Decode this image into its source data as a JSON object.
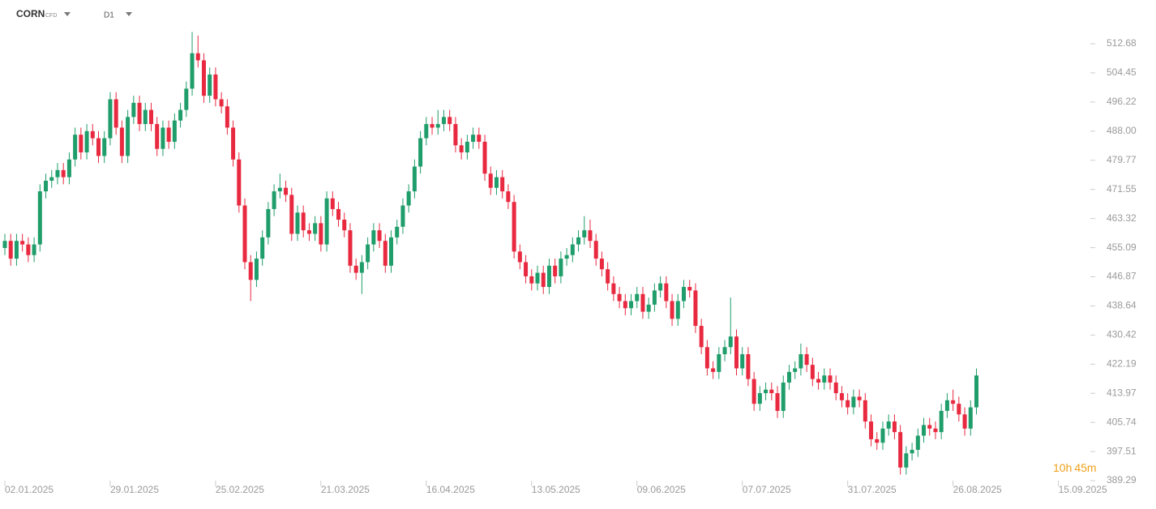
{
  "header": {
    "symbol": "CORN",
    "instrument": "CFD",
    "timeframe": "D1"
  },
  "countdown": {
    "hours": "10h",
    "minutes": "45m"
  },
  "chart_data": {
    "type": "candlestick",
    "up_color": "#1f9d6a",
    "down_color": "#e8293f",
    "ylim": [
      382.43,
      525.04
    ],
    "yticks": [
      512.68,
      504.45,
      496.22,
      {
        "value": 488.0,
        "label": "488.00"
      },
      479.77,
      471.55,
      463.32,
      455.09,
      446.87,
      438.64,
      430.42,
      422.19,
      413.97,
      405.74,
      397.51,
      389.29
    ],
    "xlim": [
      -0.83,
      185.46
    ],
    "xticks": [
      {
        "value": 0,
        "label": "02.01.2025"
      },
      {
        "value": 18,
        "label": "29.01.2025"
      },
      {
        "value": 36,
        "label": "25.02.2025"
      },
      {
        "value": 54,
        "label": "21.03.2025"
      },
      {
        "value": 72,
        "label": "16.04.2025"
      },
      {
        "value": 90,
        "label": "13.05.2025"
      },
      {
        "value": 108,
        "label": "09.06.2025"
      },
      {
        "value": 126,
        "label": "07.07.2025"
      },
      {
        "value": 144,
        "label": "31.07.2025"
      },
      {
        "value": 162,
        "label": "26.08.2025"
      },
      {
        "value": 180,
        "label": "15.09.2025"
      }
    ],
    "open": [
      455,
      457,
      452,
      457,
      456,
      453,
      456,
      471,
      474,
      475,
      477,
      475,
      480,
      487,
      482,
      488,
      486,
      481,
      486,
      497,
      489,
      481,
      492,
      496,
      490,
      494,
      490,
      483,
      489,
      485,
      491,
      494,
      500,
      510,
      508,
      498,
      504,
      497,
      495,
      489,
      480,
      467,
      451,
      446,
      452,
      458,
      466,
      471,
      472,
      470,
      459,
      465,
      460,
      459,
      462,
      456,
      469,
      466,
      463,
      460,
      450,
      448,
      451,
      456,
      460,
      457,
      450,
      458,
      461,
      467,
      471,
      478,
      486,
      490,
      489,
      490,
      492,
      490,
      484,
      482,
      485,
      487,
      485,
      476,
      472,
      475,
      471,
      468,
      454,
      451,
      447,
      445,
      448,
      444,
      450,
      447,
      452,
      453,
      456,
      458,
      460,
      457,
      452,
      449,
      445,
      442,
      440,
      438,
      440,
      442,
      437,
      439,
      443,
      445,
      440,
      435,
      440,
      444,
      443,
      433,
      427,
      421,
      420,
      425,
      427,
      430,
      421,
      425,
      418,
      411,
      414,
      415,
      414,
      409,
      417,
      420,
      421,
      425,
      422,
      418,
      417,
      419,
      417,
      414,
      412,
      410,
      413,
      412,
      406,
      401,
      400,
      404,
      406,
      403,
      393,
      397,
      398,
      402,
      405,
      404,
      403,
      409,
      412,
      411,
      408,
      404,
      410
    ],
    "high": [
      459,
      459,
      459,
      459,
      458,
      458,
      473,
      476,
      477,
      479,
      479,
      482,
      489,
      489,
      490,
      490,
      488,
      488,
      499,
      499,
      491,
      494,
      498,
      498,
      496,
      496,
      492,
      491,
      491,
      493,
      496,
      502,
      516,
      515,
      510,
      506,
      506,
      499,
      497,
      491,
      482,
      469,
      453,
      454,
      460,
      468,
      473,
      476,
      474,
      472,
      467,
      467,
      462,
      464,
      464,
      471,
      471,
      468,
      465,
      462,
      452,
      453,
      458,
      462,
      462,
      459,
      460,
      463,
      469,
      473,
      480,
      488,
      492,
      492,
      494,
      494,
      494,
      492,
      486,
      487,
      489,
      489,
      487,
      478,
      477,
      477,
      473,
      470,
      456,
      453,
      449,
      450,
      450,
      452,
      452,
      454,
      455,
      458,
      460,
      464,
      463,
      459,
      454,
      451,
      447,
      444,
      442,
      442,
      444,
      444,
      441,
      445,
      447,
      447,
      442,
      442,
      446,
      446,
      445,
      435,
      429,
      423,
      427,
      429,
      441,
      432,
      427,
      427,
      420,
      416,
      417,
      417,
      416,
      419,
      422,
      423,
      428,
      427,
      424,
      420,
      421,
      421,
      419,
      416,
      414,
      415,
      415,
      414,
      408,
      403,
      406,
      408,
      408,
      405,
      399,
      400,
      404,
      407,
      407,
      406,
      411,
      414,
      415,
      413,
      410,
      412,
      421
    ],
    "low": [
      453,
      450,
      450,
      454,
      451,
      451,
      454,
      469,
      472,
      473,
      473,
      473,
      478,
      480,
      480,
      484,
      479,
      479,
      484,
      487,
      479,
      479,
      490,
      488,
      488,
      488,
      481,
      481,
      483,
      483,
      489,
      492,
      498,
      506,
      496,
      496,
      495,
      493,
      487,
      478,
      465,
      449,
      440,
      444,
      450,
      456,
      464,
      469,
      468,
      457,
      457,
      458,
      457,
      457,
      454,
      454,
      464,
      461,
      458,
      448,
      446,
      442,
      449,
      454,
      455,
      448,
      448,
      456,
      459,
      465,
      469,
      476,
      484,
      487,
      487,
      488,
      488,
      482,
      480,
      480,
      483,
      483,
      474,
      470,
      470,
      469,
      466,
      452,
      449,
      445,
      443,
      443,
      442,
      442,
      445,
      445,
      450,
      451,
      454,
      456,
      455,
      450,
      447,
      443,
      440,
      438,
      436,
      436,
      438,
      435,
      435,
      437,
      441,
      438,
      433,
      433,
      438,
      441,
      431,
      425,
      419,
      418,
      418,
      423,
      425,
      419,
      419,
      416,
      409,
      409,
      412,
      412,
      407,
      407,
      415,
      418,
      419,
      420,
      416,
      415,
      415,
      415,
      412,
      410,
      408,
      408,
      410,
      404,
      399,
      398,
      398,
      402,
      401,
      391,
      391,
      395,
      396,
      400,
      402,
      401,
      401,
      407,
      409,
      406,
      402,
      402,
      408
    ],
    "close": [
      457,
      452,
      457,
      456,
      453,
      456,
      471,
      474,
      475,
      477,
      475,
      480,
      487,
      482,
      488,
      486,
      481,
      486,
      497,
      489,
      481,
      492,
      496,
      490,
      494,
      490,
      483,
      489,
      485,
      491,
      494,
      500,
      510,
      508,
      498,
      504,
      497,
      495,
      489,
      480,
      467,
      451,
      446,
      452,
      458,
      466,
      471,
      472,
      470,
      459,
      465,
      460,
      459,
      462,
      456,
      469,
      466,
      463,
      460,
      450,
      448,
      451,
      456,
      460,
      457,
      450,
      458,
      461,
      467,
      471,
      478,
      486,
      490,
      489,
      490,
      492,
      490,
      484,
      482,
      485,
      487,
      485,
      476,
      472,
      475,
      471,
      468,
      454,
      451,
      447,
      445,
      448,
      444,
      450,
      447,
      452,
      453,
      456,
      458,
      460,
      457,
      452,
      449,
      445,
      442,
      440,
      438,
      440,
      442,
      437,
      439,
      443,
      445,
      440,
      435,
      440,
      444,
      443,
      433,
      427,
      421,
      420,
      425,
      427,
      430,
      421,
      425,
      418,
      411,
      414,
      415,
      414,
      409,
      417,
      420,
      421,
      425,
      422,
      418,
      417,
      419,
      417,
      414,
      412,
      410,
      413,
      412,
      406,
      401,
      400,
      404,
      406,
      403,
      393,
      397,
      398,
      402,
      405,
      404,
      403,
      409,
      412,
      411,
      408,
      404,
      410,
      419
    ]
  }
}
